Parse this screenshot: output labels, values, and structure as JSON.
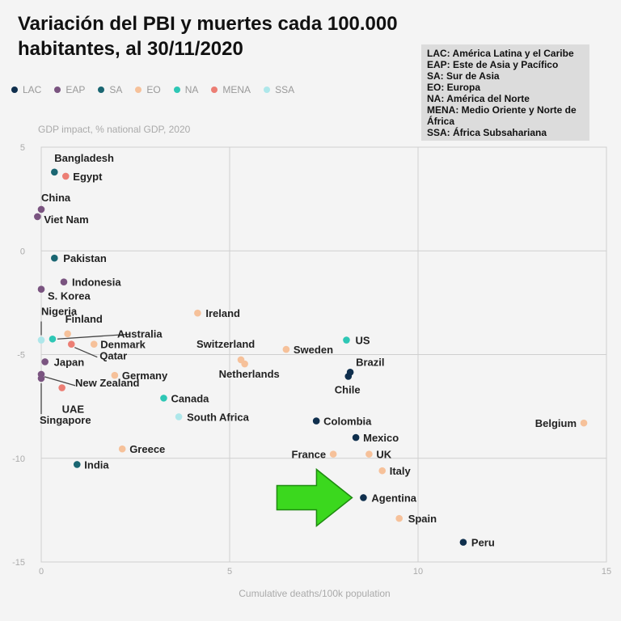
{
  "title_lines": [
    "Variación del PBI y muertes cada 100.000",
    "habitantes, al 30/11/2020"
  ],
  "region_box": [
    "LAC: América Latina y el Caribe",
    "EAP: Este de Asia y Pacífico",
    "SA: Sur de Asia",
    "EO: Europa",
    "NA: América del Norte",
    "MENA: Medio Oriente y Norte de África",
    "SSA: África Subsahariana"
  ],
  "colors": {
    "LAC": "#0f2f4d",
    "EAP": "#7a5480",
    "SA": "#1a6672",
    "EO": "#f6c19a",
    "NA": "#2ec7b5",
    "MENA": "#ec7e74",
    "SSA": "#aee7ea",
    "arrow": "#3bd81e",
    "arrow_stroke": "#1e8a10"
  },
  "chart_data": {
    "type": "scatter",
    "title": "Variación del PBI y muertes cada 100.000 habitantes, al 30/11/2020",
    "xlabel": "Cumulative deaths/100k population",
    "ylabel": "GDP impact, % national GDP, 2020",
    "xlim": [
      0,
      15
    ],
    "ylim": [
      -15,
      5
    ],
    "x_ticks": [
      "0",
      "5",
      "10",
      "15"
    ],
    "y_ticks": [
      "5",
      "0",
      "-5",
      "-10",
      "-15"
    ],
    "grid": true,
    "legend_position": "top-left",
    "legend": [
      "LAC",
      "EAP",
      "SA",
      "EO",
      "NA",
      "MENA",
      "SSA"
    ],
    "annotation": "arrow pointing to Agentina",
    "points": [
      {
        "label": "Bangladesh",
        "group": "SA",
        "x": 0.35,
        "y": 3.8
      },
      {
        "label": "Egypt",
        "group": "MENA",
        "x": 0.65,
        "y": 3.6
      },
      {
        "label": "China",
        "group": "EAP",
        "x": 0.0,
        "y": 2.0
      },
      {
        "label": "Viet Nam",
        "group": "EAP",
        "x": -0.1,
        "y": 1.65
      },
      {
        "label": "Pakistan",
        "group": "SA",
        "x": 0.35,
        "y": -0.35
      },
      {
        "label": "Indonesia",
        "group": "EAP",
        "x": 0.6,
        "y": -1.5
      },
      {
        "label": "S. Korea",
        "group": "EAP",
        "x": 0.0,
        "y": -1.85
      },
      {
        "label": "Ireland",
        "group": "EO",
        "x": 4.15,
        "y": -3.0
      },
      {
        "label": "Nigeria",
        "group": "SSA",
        "x": 0.0,
        "y": -4.3
      },
      {
        "label": "Finland",
        "group": "EO",
        "x": 0.7,
        "y": -4.0
      },
      {
        "label": "Australia",
        "group": "NA",
        "x": 0.3,
        "y": -4.25
      },
      {
        "label": "Denmark",
        "group": "EO",
        "x": 1.4,
        "y": -4.5
      },
      {
        "label": "Qatar",
        "group": "MENA",
        "x": 0.8,
        "y": -4.5
      },
      {
        "label": "US",
        "group": "NA",
        "x": 8.1,
        "y": -4.3
      },
      {
        "label": "Switzerland",
        "group": "EO",
        "x": 5.3,
        "y": -5.25
      },
      {
        "label": "Sweden",
        "group": "EO",
        "x": 6.5,
        "y": -4.75
      },
      {
        "label": "Netherlands",
        "group": "EO",
        "x": 5.4,
        "y": -5.45
      },
      {
        "label": "Brazil",
        "group": "LAC",
        "x": 8.2,
        "y": -5.85
      },
      {
        "label": "Chile",
        "group": "LAC",
        "x": 8.15,
        "y": -6.05
      },
      {
        "label": "Japan",
        "group": "EAP",
        "x": 0.1,
        "y": -5.35
      },
      {
        "label": "Germany",
        "group": "EO",
        "x": 1.95,
        "y": -6.0
      },
      {
        "label": "New Zealand",
        "group": "EAP",
        "x": 0.0,
        "y": -5.95
      },
      {
        "label": "UAE",
        "group": "MENA",
        "x": 0.55,
        "y": -6.6
      },
      {
        "label": "Singapore",
        "group": "EAP",
        "x": 0.0,
        "y": -6.15
      },
      {
        "label": "Canada",
        "group": "NA",
        "x": 3.25,
        "y": -7.1
      },
      {
        "label": "South Africa",
        "group": "SSA",
        "x": 3.65,
        "y": -8.0
      },
      {
        "label": "Colombia",
        "group": "LAC",
        "x": 7.3,
        "y": -8.2
      },
      {
        "label": "Belgium",
        "group": "EO",
        "x": 14.4,
        "y": -8.3
      },
      {
        "label": "Mexico",
        "group": "LAC",
        "x": 8.35,
        "y": -9.0
      },
      {
        "label": "Greece",
        "group": "EO",
        "x": 2.15,
        "y": -9.55
      },
      {
        "label": "France",
        "group": "EO",
        "x": 7.75,
        "y": -9.8
      },
      {
        "label": "UK",
        "group": "EO",
        "x": 8.7,
        "y": -9.8
      },
      {
        "label": "India",
        "group": "SA",
        "x": 0.95,
        "y": -10.3
      },
      {
        "label": "Italy",
        "group": "EO",
        "x": 9.05,
        "y": -10.6
      },
      {
        "label": "Agentina",
        "group": "LAC",
        "x": 8.55,
        "y": -11.9
      },
      {
        "label": "Spain",
        "group": "EO",
        "x": 9.5,
        "y": -12.9
      },
      {
        "label": "Peru",
        "group": "LAC",
        "x": 11.2,
        "y": -14.05
      }
    ]
  }
}
